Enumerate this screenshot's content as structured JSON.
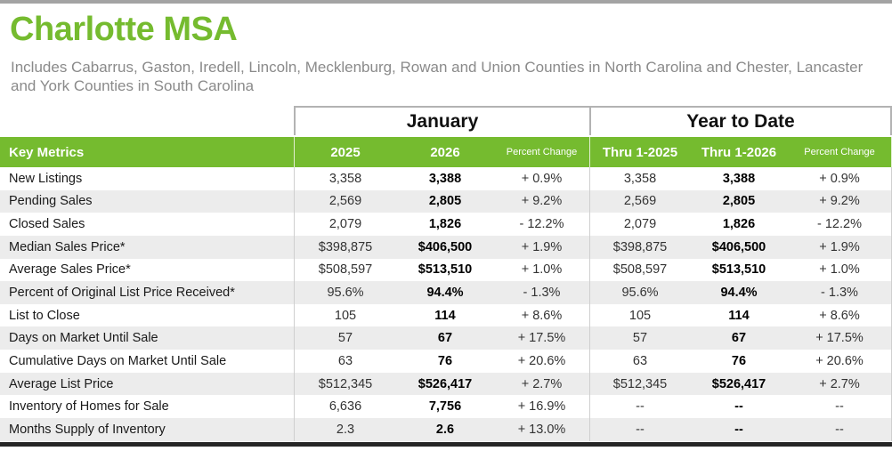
{
  "page": {
    "title": "Charlotte MSA",
    "subtitle": "Includes Cabarrus, Gaston, Iredell, Lincoln, Mecklenburg, Rowan and Union Counties in North Carolina and Chester, Lancaster and York Counties in South Carolina"
  },
  "colors": {
    "accent_green": "#75BB2F",
    "alt_row_gray": "#ECECEC",
    "divider_gray": "#CFCFCF",
    "group_border_gray": "#B3B3B3",
    "bottom_rule_black": "#262626",
    "top_rule_gray": "#A3A3A3",
    "subtitle_gray": "#8A8A8A"
  },
  "table": {
    "group_headers": {
      "month": "January",
      "ytd": "Year to Date"
    },
    "header": {
      "key_metrics": "Key Metrics",
      "jan_prev": "2025",
      "jan_curr": "2026",
      "jan_pct": "Percent Change",
      "ytd_prev": "Thru 1-2025",
      "ytd_curr": "Thru 1-2026",
      "ytd_pct": "Percent Change"
    },
    "rows": [
      {
        "metric": "New Listings",
        "jan_prev": "3,358",
        "jan_curr": "3,388",
        "jan_pct": "+ 0.9%",
        "ytd_prev": "3,358",
        "ytd_curr": "3,388",
        "ytd_pct": "+ 0.9%"
      },
      {
        "metric": "Pending Sales",
        "jan_prev": "2,569",
        "jan_curr": "2,805",
        "jan_pct": "+ 9.2%",
        "ytd_prev": "2,569",
        "ytd_curr": "2,805",
        "ytd_pct": "+ 9.2%"
      },
      {
        "metric": "Closed Sales",
        "jan_prev": "2,079",
        "jan_curr": "1,826",
        "jan_pct": "- 12.2%",
        "ytd_prev": "2,079",
        "ytd_curr": "1,826",
        "ytd_pct": "- 12.2%"
      },
      {
        "metric": "Median Sales Price*",
        "jan_prev": "$398,875",
        "jan_curr": "$406,500",
        "jan_pct": "+ 1.9%",
        "ytd_prev": "$398,875",
        "ytd_curr": "$406,500",
        "ytd_pct": "+ 1.9%"
      },
      {
        "metric": "Average Sales Price*",
        "jan_prev": "$508,597",
        "jan_curr": "$513,510",
        "jan_pct": "+ 1.0%",
        "ytd_prev": "$508,597",
        "ytd_curr": "$513,510",
        "ytd_pct": "+ 1.0%"
      },
      {
        "metric": "Percent of Original List Price Received*",
        "jan_prev": "95.6%",
        "jan_curr": "94.4%",
        "jan_pct": "- 1.3%",
        "ytd_prev": "95.6%",
        "ytd_curr": "94.4%",
        "ytd_pct": "- 1.3%"
      },
      {
        "metric": "List to Close",
        "jan_prev": "105",
        "jan_curr": "114",
        "jan_pct": "+ 8.6%",
        "ytd_prev": "105",
        "ytd_curr": "114",
        "ytd_pct": "+ 8.6%"
      },
      {
        "metric": "Days on Market Until Sale",
        "jan_prev": "57",
        "jan_curr": "67",
        "jan_pct": "+ 17.5%",
        "ytd_prev": "57",
        "ytd_curr": "67",
        "ytd_pct": "+ 17.5%"
      },
      {
        "metric": "Cumulative Days on Market Until Sale",
        "jan_prev": "63",
        "jan_curr": "76",
        "jan_pct": "+ 20.6%",
        "ytd_prev": "63",
        "ytd_curr": "76",
        "ytd_pct": "+ 20.6%"
      },
      {
        "metric": "Average List Price",
        "jan_prev": "$512,345",
        "jan_curr": "$526,417",
        "jan_pct": "+ 2.7%",
        "ytd_prev": "$512,345",
        "ytd_curr": "$526,417",
        "ytd_pct": "+ 2.7%"
      },
      {
        "metric": "Inventory of Homes for Sale",
        "jan_prev": "6,636",
        "jan_curr": "7,756",
        "jan_pct": "+ 16.9%",
        "ytd_prev": "--",
        "ytd_curr": "--",
        "ytd_pct": "--"
      },
      {
        "metric": "Months Supply of Inventory",
        "jan_prev": "2.3",
        "jan_curr": "2.6",
        "jan_pct": "+ 13.0%",
        "ytd_prev": "--",
        "ytd_curr": "--",
        "ytd_pct": "--"
      }
    ]
  }
}
